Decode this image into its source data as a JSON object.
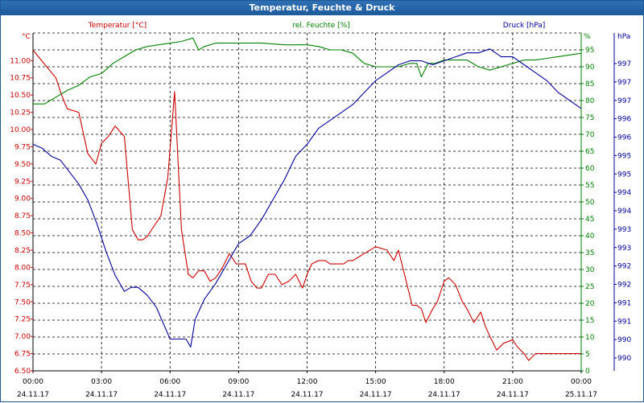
{
  "window": {
    "title": "Temperatur, Feuchte & Druck"
  },
  "colors": {
    "temperature": "#cc0000",
    "humidity": "#008000",
    "pressure": "#000099",
    "grid": "#000000",
    "frame_blue": "#1c5a9c"
  },
  "chart_data": {
    "type": "line",
    "title": "Temperatur, Feuchte & Druck",
    "grid": true,
    "x_ticks": [
      {
        "time": "00:00",
        "date": "24.11.17"
      },
      {
        "time": "03:00",
        "date": "24.11.17"
      },
      {
        "time": "06:00",
        "date": "24.11.17"
      },
      {
        "time": "09:00",
        "date": "24.11.17"
      },
      {
        "time": "12:00",
        "date": "24.11.17"
      },
      {
        "time": "15:00",
        "date": "24.11.17"
      },
      {
        "time": "18:00",
        "date": "24.11.17"
      },
      {
        "time": "21:00",
        "date": "24.11.17"
      },
      {
        "time": "00:00",
        "date": "25.11.17"
      }
    ],
    "axes": {
      "temperature": {
        "label": "Temperatur [°C]",
        "unit": "°C",
        "ylim": [
          6.5,
          11.4
        ],
        "ticks": [
          "11.00",
          "10.75",
          "10.50",
          "10.25",
          "10.00",
          "9.75",
          "9.50",
          "9.25",
          "9.00",
          "8.75",
          "8.50",
          "8.25",
          "8.00",
          "7.75",
          "7.50",
          "7.25",
          "7.00",
          "6.75",
          "6.50"
        ]
      },
      "humidity": {
        "label": "rel. Feuchte [%]",
        "unit": "%",
        "ylim": [
          0,
          100
        ],
        "ticks": [
          "95",
          "90",
          "85",
          "80",
          "75",
          "70",
          "65",
          "60",
          "55",
          "50",
          "45",
          "40",
          "35",
          "30",
          "25",
          "20",
          "15",
          "10",
          "5",
          "0"
        ]
      },
      "pressure": {
        "label": "Druck [hPa]",
        "unit": "hPa",
        "ylim": [
          989.6,
          998.1
        ],
        "ticks": [
          "997",
          "997",
          "997",
          "996",
          "996",
          "995",
          "995",
          "994",
          "994",
          "993",
          "993",
          "992",
          "992",
          "991",
          "991",
          "990",
          "990"
        ]
      }
    },
    "series": [
      {
        "name": "Temperatur [°C]",
        "axis": "temperature",
        "x": [
          0,
          0.5,
          1,
          1.25,
          1.5,
          2,
          2.4,
          2.75,
          3,
          3.3,
          3.6,
          4,
          4.35,
          4.6,
          4.8,
          5,
          5.3,
          5.6,
          5.9,
          6.2,
          6.5,
          6.8,
          7,
          7.25,
          7.5,
          7.75,
          8,
          8.3,
          8.6,
          8.9,
          9.1,
          9.3,
          9.55,
          9.8,
          10,
          10.3,
          10.6,
          10.9,
          11.2,
          11.5,
          11.8,
          12,
          12.2,
          12.5,
          12.8,
          13,
          13.3,
          13.6,
          13.8,
          14,
          14.5,
          15,
          15.5,
          15.8,
          16,
          16.3,
          16.6,
          16.8,
          17,
          17.2,
          17.5,
          17.7,
          18,
          18.2,
          18.5,
          18.8,
          19,
          19.3,
          19.6,
          19.8,
          20,
          20.3,
          20.6,
          21,
          21.2,
          21.5,
          21.7,
          21.85,
          22,
          22.4,
          22.8,
          23,
          23.3,
          23.5,
          23.7,
          24
        ],
        "y": [
          11.15,
          10.95,
          10.75,
          10.5,
          10.3,
          10.25,
          9.65,
          9.5,
          9.8,
          9.9,
          10.05,
          9.9,
          8.55,
          8.4,
          8.4,
          8.45,
          8.6,
          8.75,
          9.3,
          10.55,
          8.55,
          7.9,
          7.85,
          7.95,
          7.95,
          7.8,
          7.85,
          8.0,
          8.2,
          8.05,
          8.05,
          8.05,
          7.8,
          7.7,
          7.7,
          7.9,
          7.9,
          7.75,
          7.8,
          7.9,
          7.7,
          7.9,
          8.05,
          8.1,
          8.1,
          8.05,
          8.05,
          8.05,
          8.1,
          8.1,
          8.2,
          8.3,
          8.25,
          8.1,
          8.25,
          7.85,
          7.45,
          7.45,
          7.4,
          7.2,
          7.4,
          7.5,
          7.8,
          7.85,
          7.75,
          7.5,
          7.4,
          7.2,
          7.35,
          7.15,
          7.0,
          6.8,
          6.9,
          6.95,
          6.85,
          6.75,
          6.65,
          6.7,
          6.75,
          6.75,
          6.75,
          6.75,
          6.75,
          6.75,
          6.75,
          6.75
        ]
      },
      {
        "name": "rel. Feuchte [%]",
        "axis": "humidity",
        "x": [
          0,
          0.5,
          1,
          1.5,
          2,
          2.5,
          3,
          3.5,
          4,
          4.5,
          5,
          5.5,
          6,
          6.5,
          7,
          7.25,
          7.5,
          8,
          8.5,
          9,
          10,
          11,
          12,
          12.5,
          13,
          13.5,
          14,
          14.5,
          15,
          15.5,
          16,
          16.5,
          16.8,
          17,
          17.3,
          17.6,
          18,
          18.5,
          19,
          19.5,
          20,
          20.5,
          21,
          21.5,
          22,
          22.5,
          23,
          23.5,
          24
        ],
        "y": [
          79,
          79,
          81,
          83,
          84.5,
          87,
          88,
          91,
          93,
          95,
          96,
          96.5,
          97,
          97.5,
          98.5,
          95,
          96,
          97,
          97,
          97,
          97,
          96.5,
          96.5,
          96,
          95,
          95,
          94,
          91,
          90,
          90,
          90,
          91,
          91,
          87,
          91,
          91,
          92,
          92,
          92,
          90,
          89,
          90,
          91,
          92,
          92,
          92.5,
          93,
          93.5,
          94
        ]
      },
      {
        "name": "Druck [hPa]",
        "axis": "pressure",
        "x": [
          0,
          0.4,
          0.8,
          1.2,
          1.6,
          2,
          2.4,
          2.8,
          3.2,
          3.6,
          4,
          4.3,
          4.6,
          5,
          5.4,
          5.7,
          6,
          6.4,
          6.7,
          6.9,
          7.1,
          7.5,
          8,
          8.5,
          9,
          9.5,
          10,
          10.5,
          11,
          11.5,
          12,
          12.5,
          13,
          13.5,
          14,
          14.5,
          15,
          15.5,
          16,
          16.5,
          17,
          17.5,
          18,
          18.5,
          19,
          19.5,
          20,
          20.5,
          21,
          21.5,
          22,
          22.5,
          23,
          23.5,
          24
        ],
        "y": [
          995.3,
          995.2,
          995.0,
          994.9,
          994.6,
          994.3,
          993.9,
          993.3,
          992.6,
          992.0,
          991.6,
          991.7,
          991.7,
          991.5,
          991.2,
          990.8,
          990.4,
          990.4,
          990.4,
          990.2,
          990.9,
          991.4,
          991.8,
          992.3,
          992.8,
          993.0,
          993.4,
          993.9,
          994.4,
          995.0,
          995.3,
          995.7,
          995.9,
          996.1,
          996.3,
          996.6,
          996.9,
          997.1,
          997.3,
          997.4,
          997.4,
          997.3,
          997.4,
          997.5,
          997.6,
          997.6,
          997.7,
          997.5,
          997.5,
          997.3,
          997.1,
          996.9,
          996.6,
          996.4,
          996.2
        ]
      }
    ]
  }
}
